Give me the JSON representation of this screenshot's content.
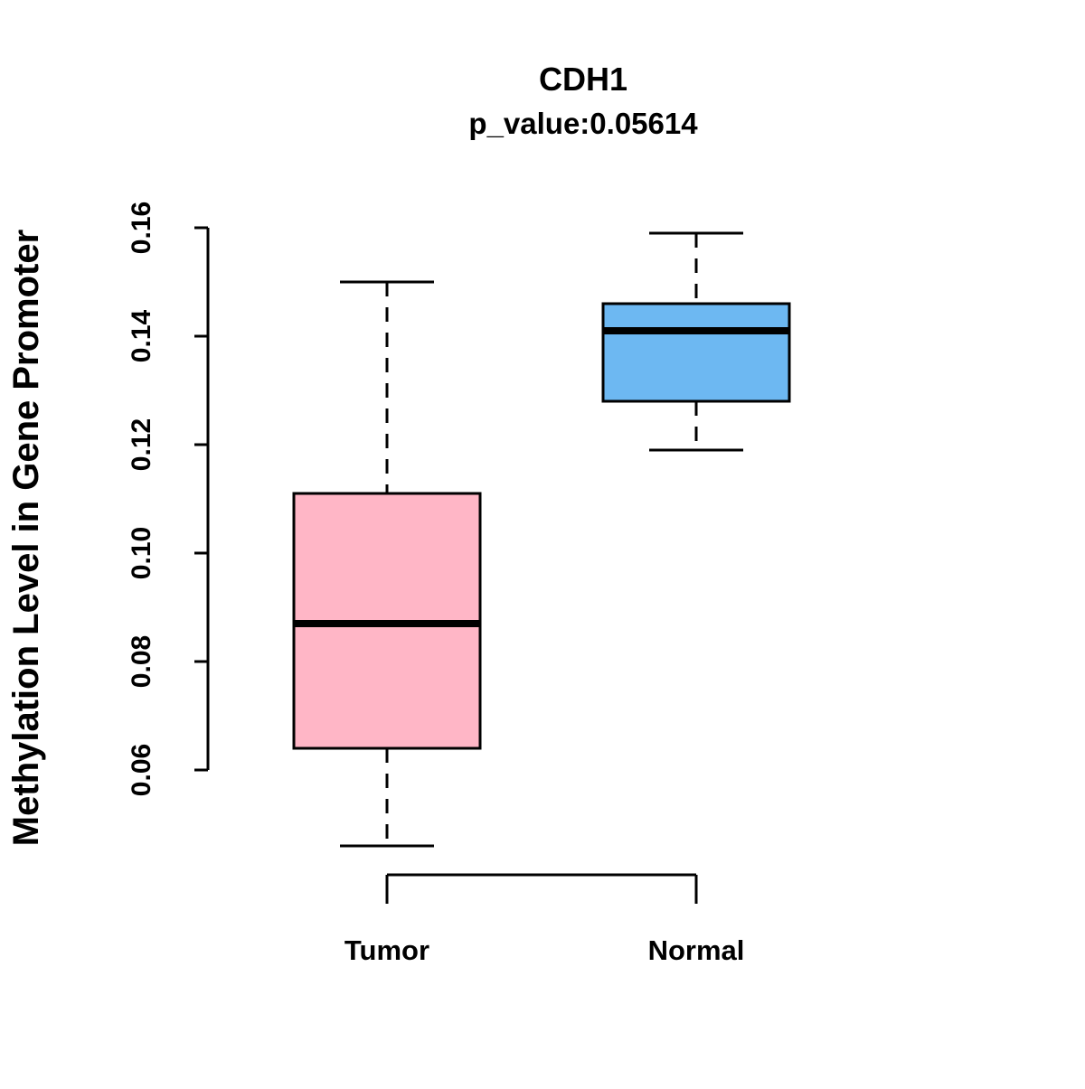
{
  "title": "CDH1",
  "subtitle": "p_value:0.05614",
  "chart_data": {
    "type": "boxplot",
    "title": "CDH1",
    "subtitle": "p_value:0.05614",
    "xlabel": "",
    "ylabel": "Methylation Level in Gene Promoter",
    "categories": [
      "Tumor",
      "Normal"
    ],
    "yticks": [
      0.06,
      0.08,
      0.1,
      0.12,
      0.14,
      0.16
    ],
    "ylim": [
      0.046,
      0.16
    ],
    "grid": false,
    "legend": "none",
    "series": [
      {
        "name": "Tumor",
        "color": "#FFB6C6",
        "min": 0.046,
        "q1": 0.064,
        "median": 0.087,
        "q3": 0.111,
        "max": 0.15
      },
      {
        "name": "Normal",
        "color": "#6DB8F2",
        "min": 0.119,
        "q1": 0.128,
        "median": 0.141,
        "q3": 0.146,
        "max": 0.159
      }
    ],
    "box_border_color": "#000000",
    "median_color": "#000000",
    "whisker_style": "dashed"
  }
}
